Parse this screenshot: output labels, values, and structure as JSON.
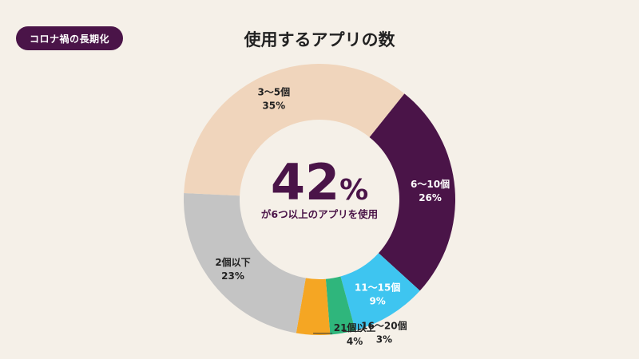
{
  "badge": {
    "label": "コロナ禍の長期化"
  },
  "chart_data": {
    "type": "pie",
    "title": "使用するアプリの数",
    "center_value": "42",
    "center_unit": "%",
    "center_caption": "が6つ以上のアプリを使用",
    "slices": [
      {
        "label": "6〜10個",
        "value": 26,
        "value_label": "26%",
        "color": "#4a1448",
        "text_color": "#ffffff"
      },
      {
        "label": "11〜15個",
        "value": 9,
        "value_label": "9%",
        "color": "#3ec5f0",
        "text_color": "#ffffff"
      },
      {
        "label": "16〜20個",
        "value": 3,
        "value_label": "3%",
        "color": "#2fb67c",
        "text_color": "#222222"
      },
      {
        "label": "21個以上",
        "value": 4,
        "value_label": "4%",
        "color": "#f5a623",
        "text_color": "#222222"
      },
      {
        "label": "2個以下",
        "value": 23,
        "value_label": "23%",
        "color": "#c4c4c4",
        "text_color": "#222222"
      },
      {
        "label": "3〜5個",
        "value": 35,
        "value_label": "35%",
        "color": "#f0d5bc",
        "text_color": "#222222"
      }
    ]
  }
}
